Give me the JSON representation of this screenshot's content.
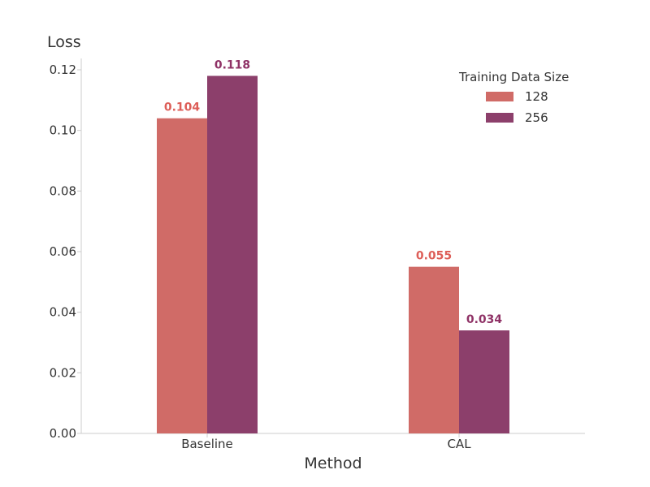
{
  "chart_data": {
    "type": "bar",
    "title": "",
    "xlabel": "Method",
    "ylabel": "Loss",
    "categories": [
      "Baseline",
      "CAL"
    ],
    "series": [
      {
        "name": "128",
        "values": [
          0.104,
          0.055
        ],
        "labels": [
          "0.104",
          "0.055"
        ],
        "color": "#D06B67"
      },
      {
        "name": "256",
        "values": [
          0.118,
          0.034
        ],
        "labels": [
          "0.118",
          "0.034"
        ],
        "color": "#8C3F6B"
      }
    ],
    "ylim": [
      0,
      0.12
    ],
    "yticks": [
      "0.00",
      "0.02",
      "0.04",
      "0.06",
      "0.08",
      "0.10",
      "0.12"
    ],
    "grid": false,
    "legend": {
      "title": "Training Data Size",
      "placement": "top-right"
    },
    "label_colors": [
      "#DD5E58",
      "#8F3266"
    ]
  }
}
